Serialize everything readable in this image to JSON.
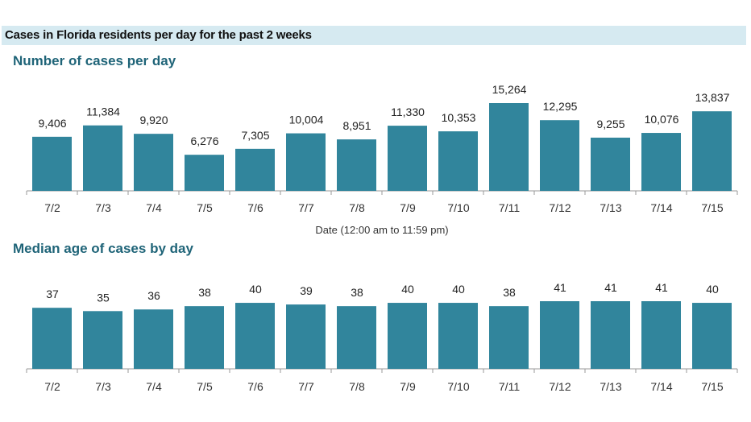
{
  "header": {
    "title": "Cases in Florida residents per day for the past 2 weeks"
  },
  "colors": {
    "bar": "#31859c",
    "banner": "#d6eaf1",
    "title": "#1f6478",
    "axis": "#999999"
  },
  "chart_data": [
    {
      "type": "bar",
      "title": "Number of cases per day",
      "xlabel": "Date (12:00 am to 11:59 pm)",
      "ylabel": "",
      "categories": [
        "7/2",
        "7/3",
        "7/4",
        "7/5",
        "7/6",
        "7/7",
        "7/8",
        "7/9",
        "7/10",
        "7/11",
        "7/12",
        "7/13",
        "7/14",
        "7/15"
      ],
      "values": [
        9406,
        11384,
        9920,
        6276,
        7305,
        10004,
        8951,
        11330,
        10353,
        15264,
        12295,
        9255,
        10076,
        13837
      ],
      "value_labels": [
        "9,406",
        "11,384",
        "9,920",
        "6,276",
        "7,305",
        "10,004",
        "8,951",
        "11,330",
        "10,353",
        "15,264",
        "12,295",
        "9,255",
        "10,076",
        "13,837"
      ],
      "ylim": [
        0,
        15264
      ],
      "grid": false,
      "legend": "none"
    },
    {
      "type": "bar",
      "title": "Median age of cases by day",
      "xlabel": "",
      "ylabel": "",
      "categories": [
        "7/2",
        "7/3",
        "7/4",
        "7/5",
        "7/6",
        "7/7",
        "7/8",
        "7/9",
        "7/10",
        "7/11",
        "7/12",
        "7/13",
        "7/14",
        "7/15"
      ],
      "values": [
        37,
        35,
        36,
        38,
        40,
        39,
        38,
        40,
        40,
        38,
        41,
        41,
        41,
        40
      ],
      "value_labels": [
        "37",
        "35",
        "36",
        "38",
        "40",
        "39",
        "38",
        "40",
        "40",
        "38",
        "41",
        "41",
        "41",
        "40"
      ],
      "ylim": [
        0,
        41
      ],
      "grid": false,
      "legend": "none"
    }
  ]
}
